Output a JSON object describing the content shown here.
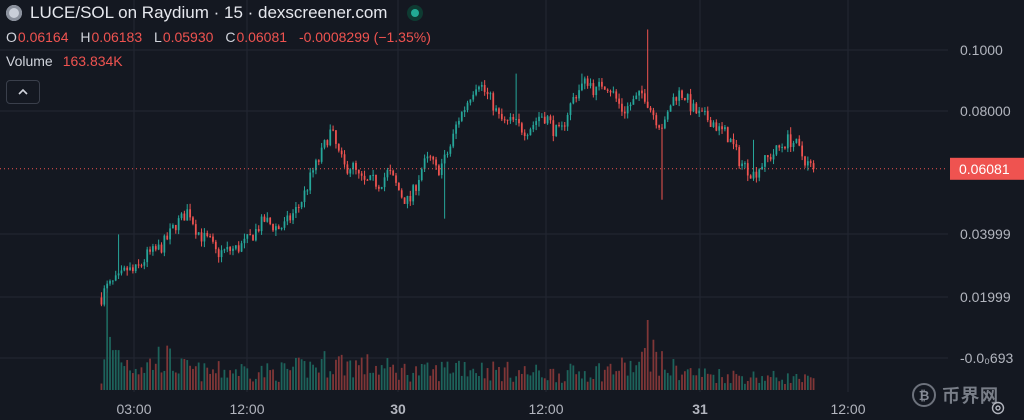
{
  "header": {
    "title": "LUCE/SOL on Raydium · 15 · dexscreener.com",
    "ohlc": [
      {
        "key": "O",
        "value": "0.06164"
      },
      {
        "key": "H",
        "value": "0.06183"
      },
      {
        "key": "L",
        "value": "0.05930"
      },
      {
        "key": "C",
        "value": "0.06081"
      },
      {
        "key": "",
        "value": "-0.0008299 (−1.35%)"
      }
    ],
    "volume_label": "Volume",
    "volume_value": "163.834K"
  },
  "watermark": "币界网",
  "colors": {
    "background": "#141821",
    "up": "#26a69a",
    "down": "#ef5350",
    "grid": "#232733",
    "price_tag": "#ef5350"
  },
  "chart_data": {
    "type": "candlestick",
    "interval": "15",
    "x_ticks": [
      "03:00",
      "12:00",
      "30",
      "12:00",
      "31",
      "12:00"
    ],
    "y_ticks": [
      "0.1000",
      "0.08000",
      "0.06081",
      "0.03999",
      "0.01999",
      "-0.0₀693"
    ],
    "y_tick_values": [
      0.1,
      0.08,
      0.06081,
      0.03999,
      0.01999,
      0.0
    ],
    "ylim": [
      -0.003,
      0.108
    ],
    "current_price": 0.06081,
    "current_price_label": "0.06081",
    "price_path": [
      [
        0,
        0.02
      ],
      [
        4,
        0.023
      ],
      [
        10,
        0.0245
      ],
      [
        16,
        0.026
      ],
      [
        22,
        0.029
      ],
      [
        28,
        0.028
      ],
      [
        34,
        0.03
      ],
      [
        40,
        0.0335
      ],
      [
        46,
        0.0345
      ],
      [
        52,
        0.036
      ],
      [
        58,
        0.039
      ],
      [
        64,
        0.043
      ],
      [
        70,
        0.045
      ],
      [
        76,
        0.048
      ],
      [
        82,
        0.042
      ],
      [
        88,
        0.039
      ],
      [
        94,
        0.038
      ],
      [
        100,
        0.034
      ],
      [
        106,
        0.0345
      ],
      [
        112,
        0.035
      ],
      [
        118,
        0.0355
      ],
      [
        124,
        0.037
      ],
      [
        130,
        0.039
      ],
      [
        136,
        0.042
      ],
      [
        142,
        0.0445
      ],
      [
        148,
        0.043
      ],
      [
        154,
        0.042
      ],
      [
        160,
        0.043
      ],
      [
        166,
        0.046
      ],
      [
        172,
        0.049
      ],
      [
        178,
        0.054
      ],
      [
        184,
        0.06
      ],
      [
        190,
        0.064
      ],
      [
        196,
        0.07
      ],
      [
        200,
        0.073
      ],
      [
        206,
        0.066
      ],
      [
        212,
        0.061
      ],
      [
        218,
        0.062
      ],
      [
        224,
        0.058
      ],
      [
        230,
        0.056
      ],
      [
        236,
        0.057
      ],
      [
        242,
        0.056
      ],
      [
        250,
        0.06
      ],
      [
        256,
        0.056
      ],
      [
        262,
        0.052
      ],
      [
        268,
        0.05
      ],
      [
        274,
        0.056
      ],
      [
        280,
        0.062
      ],
      [
        286,
        0.064
      ],
      [
        292,
        0.06
      ],
      [
        298,
        0.063
      ],
      [
        304,
        0.068
      ],
      [
        310,
        0.076
      ],
      [
        316,
        0.08
      ],
      [
        322,
        0.085
      ],
      [
        328,
        0.089
      ],
      [
        334,
        0.085
      ],
      [
        340,
        0.082
      ],
      [
        346,
        0.077
      ],
      [
        352,
        0.075
      ],
      [
        358,
        0.076
      ],
      [
        364,
        0.074
      ],
      [
        370,
        0.073
      ],
      [
        376,
        0.075
      ],
      [
        382,
        0.078
      ],
      [
        388,
        0.077
      ],
      [
        394,
        0.073
      ],
      [
        400,
        0.072
      ],
      [
        406,
        0.079
      ],
      [
        412,
        0.084
      ],
      [
        418,
        0.087
      ],
      [
        424,
        0.089
      ],
      [
        430,
        0.085
      ],
      [
        436,
        0.088
      ],
      [
        442,
        0.087
      ],
      [
        448,
        0.083
      ],
      [
        454,
        0.079
      ],
      [
        460,
        0.081
      ],
      [
        466,
        0.083
      ],
      [
        472,
        0.085
      ],
      [
        478,
        0.08
      ],
      [
        484,
        0.076
      ],
      [
        490,
        0.074
      ],
      [
        496,
        0.082
      ],
      [
        502,
        0.085
      ],
      [
        508,
        0.084
      ],
      [
        514,
        0.08
      ],
      [
        520,
        0.078
      ],
      [
        526,
        0.077
      ],
      [
        532,
        0.076
      ],
      [
        538,
        0.073
      ],
      [
        544,
        0.072
      ],
      [
        550,
        0.068
      ],
      [
        556,
        0.063
      ],
      [
        562,
        0.061
      ],
      [
        568,
        0.059
      ],
      [
        574,
        0.062
      ],
      [
        580,
        0.064
      ],
      [
        586,
        0.066
      ],
      [
        592,
        0.068
      ],
      [
        598,
        0.07
      ],
      [
        604,
        0.069
      ],
      [
        610,
        0.065
      ],
      [
        616,
        0.062
      ],
      [
        620,
        0.0608
      ]
    ],
    "spikes": [
      {
        "at": 14,
        "high": 0.04
      },
      {
        "at": 299,
        "low": 0.045
      },
      {
        "at": 360,
        "high": 0.091
      },
      {
        "at": 419,
        "high": 0.091
      },
      {
        "at": 475,
        "high": 0.105
      },
      {
        "at": 487,
        "low": 0.051
      },
      {
        "at": 567,
        "high": 0.07
      },
      {
        "at": 600,
        "high": 0.074
      }
    ],
    "volume_path": [
      [
        0,
        0.12
      ],
      [
        6,
        0.55
      ],
      [
        12,
        0.5
      ],
      [
        24,
        0.33
      ],
      [
        40,
        0.3
      ],
      [
        52,
        0.42
      ],
      [
        70,
        0.27
      ],
      [
        90,
        0.22
      ],
      [
        120,
        0.25
      ],
      [
        150,
        0.22
      ],
      [
        180,
        0.28
      ],
      [
        200,
        0.35
      ],
      [
        230,
        0.3
      ],
      [
        260,
        0.24
      ],
      [
        290,
        0.22
      ],
      [
        310,
        0.32
      ],
      [
        330,
        0.26
      ],
      [
        360,
        0.22
      ],
      [
        400,
        0.2
      ],
      [
        440,
        0.25
      ],
      [
        470,
        0.3
      ],
      [
        476,
        0.55
      ],
      [
        490,
        0.28
      ],
      [
        520,
        0.2
      ],
      [
        560,
        0.17
      ],
      [
        600,
        0.15
      ],
      [
        620,
        0.12
      ]
    ]
  }
}
